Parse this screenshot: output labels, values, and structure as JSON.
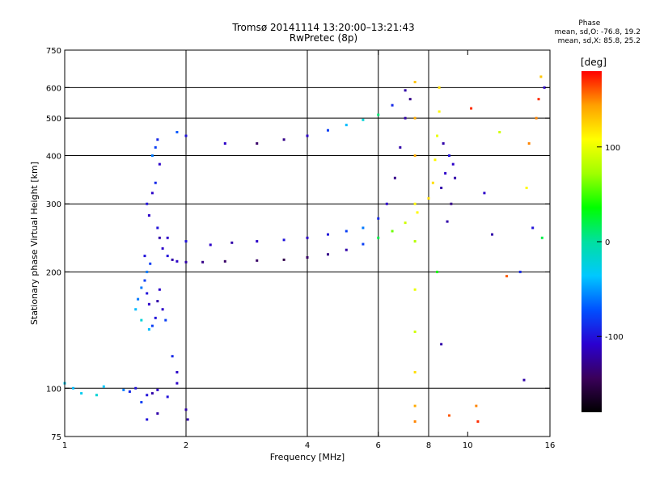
{
  "header": {
    "title": "Tromsø 20141114 13:20:00–13:21:43",
    "subtitle": "RwPretec (8p)"
  },
  "phase_stats": {
    "title": "Phase",
    "line_o": "mean, sd,O:  -76.8, 19.2",
    "line_x": "mean, sd,X:  85.8, 25.2"
  },
  "colorbar": {
    "unit": "[deg]",
    "ticks": [
      100,
      0,
      -100
    ],
    "range": [
      -180,
      180
    ],
    "colors": [
      "#000000",
      "#3a005a",
      "#2a00d0",
      "#0050ff",
      "#00c8ff",
      "#00e0a0",
      "#00ff00",
      "#a0ff00",
      "#ffff00",
      "#ffa000",
      "#ff0000"
    ]
  },
  "chart_data": {
    "type": "scatter",
    "title": "Tromsø 20141114 13:20:00–13:21:43",
    "subtitle": "RwPretec (8p)",
    "xlabel": "Frequency [MHz]",
    "ylabel": "Stationary phase Virtual Height [km]",
    "x_scale": "log",
    "y_scale": "log",
    "xlim": [
      1,
      16
    ],
    "ylim": [
      75,
      750
    ],
    "xticks": [
      1,
      2,
      4,
      6,
      8,
      10,
      16
    ],
    "yticks": [
      75,
      100,
      200,
      300,
      400,
      500,
      600,
      750
    ],
    "grid_x": [
      2,
      4,
      6,
      8
    ],
    "grid_y": [
      100,
      200,
      300,
      400,
      500,
      600
    ],
    "color_scale": "phase [deg]",
    "series": [
      {
        "values": [
          [
            1.0,
            103,
            -30
          ],
          [
            1.05,
            100,
            -40
          ],
          [
            1.1,
            97,
            -30
          ],
          [
            1.2,
            96,
            -20
          ],
          [
            1.25,
            101,
            -35
          ],
          [
            1.4,
            99,
            -60
          ],
          [
            1.45,
            98,
            -90
          ],
          [
            1.5,
            100,
            -100
          ],
          [
            1.55,
            92,
            -80
          ],
          [
            1.6,
            96,
            -100
          ],
          [
            1.65,
            97,
            -120
          ],
          [
            1.7,
            99,
            -110
          ],
          [
            1.8,
            95,
            -100
          ],
          [
            1.9,
            103,
            -110
          ],
          [
            2.0,
            88,
            -120
          ],
          [
            2.02,
            83,
            -120
          ],
          [
            1.6,
            83,
            -100
          ],
          [
            1.7,
            86,
            -120
          ],
          [
            1.9,
            110,
            -110
          ],
          [
            1.85,
            121,
            -90
          ]
        ]
      },
      {
        "values": [
          [
            1.5,
            160,
            -40
          ],
          [
            1.52,
            170,
            -60
          ],
          [
            1.55,
            182,
            -60
          ],
          [
            1.55,
            150,
            -20
          ],
          [
            1.58,
            190,
            -80
          ],
          [
            1.6,
            176,
            -100
          ],
          [
            1.62,
            165,
            -110
          ],
          [
            1.65,
            145,
            -80
          ],
          [
            1.68,
            152,
            -100
          ],
          [
            1.7,
            168,
            -120
          ],
          [
            1.72,
            180,
            -110
          ],
          [
            1.75,
            160,
            -110
          ],
          [
            1.78,
            150,
            -80
          ],
          [
            1.6,
            200,
            -60
          ],
          [
            1.63,
            210,
            -80
          ],
          [
            1.58,
            220,
            -100
          ],
          [
            1.62,
            142,
            -40
          ]
        ]
      },
      {
        "values": [
          [
            1.6,
            300,
            -100
          ],
          [
            1.62,
            280,
            -110
          ],
          [
            1.65,
            320,
            -110
          ],
          [
            1.68,
            340,
            -90
          ],
          [
            1.7,
            260,
            -100
          ],
          [
            1.72,
            245,
            -120
          ],
          [
            1.75,
            230,
            -110
          ],
          [
            1.8,
            220,
            -100
          ],
          [
            1.85,
            215,
            -120
          ],
          [
            1.9,
            213,
            -110
          ],
          [
            2.0,
            212,
            -120
          ],
          [
            2.2,
            212,
            -130
          ],
          [
            2.5,
            213,
            -140
          ],
          [
            3.0,
            214,
            -140
          ],
          [
            3.5,
            215,
            -150
          ],
          [
            4.0,
            218,
            -140
          ],
          [
            4.5,
            222,
            -130
          ],
          [
            5.0,
            228,
            -120
          ],
          [
            5.5,
            236,
            -80
          ],
          [
            6.0,
            245,
            20
          ],
          [
            6.5,
            255,
            60
          ],
          [
            7.0,
            268,
            90
          ],
          [
            7.5,
            285,
            110
          ],
          [
            8.0,
            310,
            120
          ],
          [
            8.2,
            340,
            120
          ],
          [
            8.3,
            390,
            110
          ],
          [
            8.4,
            450,
            100
          ],
          [
            8.5,
            520,
            110
          ],
          [
            8.5,
            600,
            120
          ]
        ]
      },
      {
        "values": [
          [
            1.65,
            400,
            -60
          ],
          [
            1.68,
            420,
            -80
          ],
          [
            1.7,
            440,
            -90
          ],
          [
            1.72,
            380,
            -110
          ],
          [
            1.9,
            460,
            -70
          ],
          [
            2.0,
            450,
            -100
          ],
          [
            2.5,
            430,
            -110
          ],
          [
            3.0,
            430,
            -140
          ],
          [
            3.5,
            440,
            -130
          ],
          [
            4.0,
            450,
            -110
          ],
          [
            4.5,
            465,
            -80
          ],
          [
            5.0,
            480,
            -40
          ],
          [
            5.5,
            495,
            -20
          ],
          [
            6.0,
            510,
            10
          ],
          [
            6.5,
            540,
            -90
          ],
          [
            7.0,
            590,
            -120
          ]
        ]
      },
      {
        "values": [
          [
            1.8,
            245,
            -110
          ],
          [
            2.0,
            240,
            -100
          ],
          [
            2.3,
            235,
            -110
          ],
          [
            2.6,
            238,
            -120
          ],
          [
            3.0,
            240,
            -110
          ],
          [
            3.5,
            242,
            -100
          ],
          [
            4.0,
            245,
            -110
          ],
          [
            4.5,
            250,
            -100
          ],
          [
            5.0,
            255,
            -80
          ],
          [
            5.5,
            260,
            -60
          ],
          [
            6.0,
            275,
            -90
          ],
          [
            6.3,
            300,
            -110
          ],
          [
            6.6,
            350,
            -130
          ],
          [
            6.8,
            420,
            -120
          ],
          [
            7.0,
            500,
            -120
          ],
          [
            7.2,
            560,
            -130
          ]
        ]
      },
      {
        "values": [
          [
            8.6,
            330,
            -120
          ],
          [
            8.8,
            360,
            -110
          ],
          [
            9.0,
            400,
            -100
          ],
          [
            9.2,
            380,
            -110
          ],
          [
            9.3,
            350,
            -120
          ],
          [
            8.7,
            430,
            -120
          ],
          [
            9.1,
            300,
            -130
          ],
          [
            8.9,
            270,
            -120
          ]
        ]
      },
      {
        "values": [
          [
            7.4,
            620,
            130
          ],
          [
            7.4,
            500,
            140
          ],
          [
            7.4,
            400,
            140
          ],
          [
            7.4,
            300,
            110
          ],
          [
            7.4,
            240,
            80
          ],
          [
            7.4,
            180,
            100
          ],
          [
            7.4,
            140,
            90
          ],
          [
            7.4,
            110,
            120
          ],
          [
            7.4,
            90,
            140
          ],
          [
            7.4,
            82,
            150
          ],
          [
            8.4,
            200,
            40
          ],
          [
            8.6,
            130,
            -120
          ],
          [
            9.0,
            85,
            160
          ],
          [
            10.5,
            90,
            150
          ],
          [
            10.6,
            82,
            170
          ],
          [
            11.5,
            250,
            -120
          ],
          [
            12.5,
            195,
            160
          ],
          [
            13.5,
            200,
            -90
          ],
          [
            14.0,
            330,
            110
          ],
          [
            14.2,
            430,
            150
          ],
          [
            14.5,
            260,
            -100
          ],
          [
            14.8,
            500,
            150
          ],
          [
            15.0,
            560,
            170
          ],
          [
            15.2,
            640,
            130
          ],
          [
            15.5,
            600,
            -110
          ],
          [
            15.3,
            245,
            20
          ],
          [
            13.8,
            105,
            -120
          ],
          [
            10.2,
            530,
            170
          ],
          [
            11.0,
            320,
            -110
          ],
          [
            12.0,
            460,
            90
          ]
        ]
      }
    ]
  }
}
